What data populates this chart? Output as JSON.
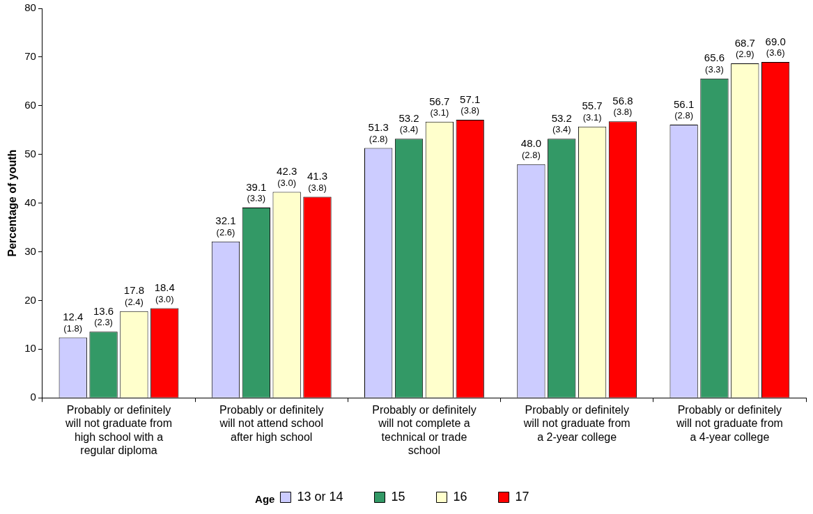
{
  "chart_data": {
    "type": "bar",
    "ylabel": "Percentage of youth",
    "legend_title": "Age",
    "legend": "bottom",
    "categories": [
      "Probably or definitely will not graduate from high school with a regular diploma",
      "Probably or definitely will not attend school after high school",
      "Probably or definitely will not complete a technical or trade school",
      "Probably or definitely will not graduate from a 2-year college",
      "Probably or definitely will not graduate from a 4-year college"
    ],
    "series": [
      {
        "name": "13 or 14",
        "color": "#ccccff",
        "values": [
          12.4,
          32.1,
          51.3,
          48.0,
          56.1
        ],
        "value_labels": [
          "12.4\n(1.8)",
          "32.1\n(2.6)",
          "51.3\n(2.8)",
          "48.0\n(2.8)",
          "56.1\n(2.8)"
        ]
      },
      {
        "name": "15",
        "color": "#339966",
        "values": [
          13.6,
          39.1,
          53.2,
          53.2,
          65.6
        ],
        "value_labels": [
          "13.6\n(2.3)",
          "39.1\n(3.3)",
          "53.2\n(3.4)",
          "53.2\n(3.4)",
          "65.6\n(3.3)"
        ]
      },
      {
        "name": "16",
        "color": "#ffffcc",
        "values": [
          17.8,
          42.3,
          56.7,
          55.7,
          68.7
        ],
        "value_labels": [
          "17.8\n(2.4)",
          "42.3\n(3.0)",
          "56.7\n(3.1)",
          "55.7\n(3.1)",
          "68.7\n(2.9)"
        ]
      },
      {
        "name": "17",
        "color": "#ff0000",
        "values": [
          18.4,
          41.3,
          57.1,
          56.8,
          69.0
        ],
        "value_labels": [
          "18.4\n(3.0)",
          "41.3\n(3.8)",
          "57.1\n(3.8)",
          "56.8\n(3.8)",
          "69.0\n(3.6)"
        ]
      }
    ],
    "ylim": [
      0,
      80
    ],
    "yticks": [
      0,
      10,
      20,
      30,
      40,
      50,
      60,
      70,
      80
    ],
    "grid": false
  }
}
